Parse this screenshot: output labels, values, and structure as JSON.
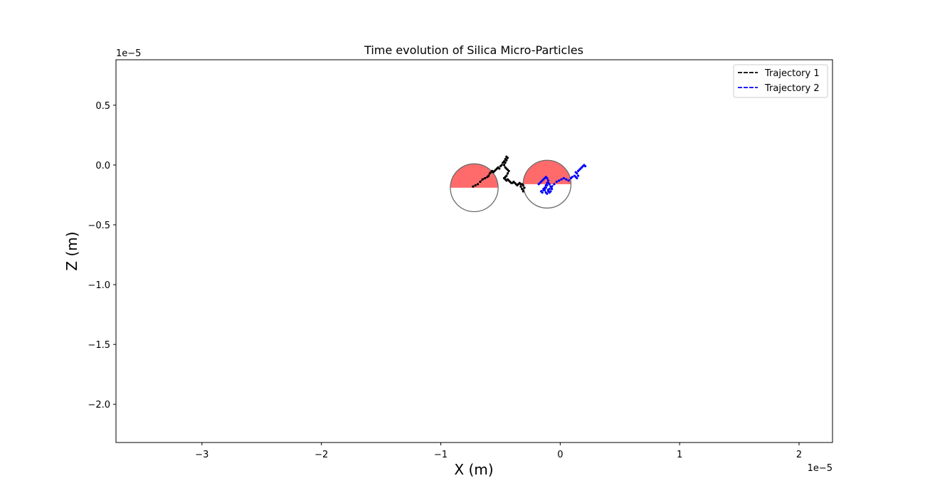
{
  "chart_data": {
    "type": "scatter",
    "title": "Time evolution of Silica Micro-Particles",
    "xlabel": "X (m)",
    "ylabel": "Z (m)",
    "x_offset_text": "1e−5",
    "y_offset_text": "1e−5",
    "xlim": [
      -3.72,
      2.28
    ],
    "ylim": [
      -2.32,
      0.88
    ],
    "x_ticks": [
      -3,
      -2,
      -1,
      0,
      1,
      2
    ],
    "x_tick_labels": [
      "−3",
      "−2",
      "−1",
      "0",
      "1",
      "2"
    ],
    "y_ticks": [
      0.5,
      0.0,
      -0.5,
      -1.0,
      -1.5,
      -2.0
    ],
    "y_tick_labels": [
      "0.5",
      "0.0",
      "−0.5",
      "−1.0",
      "−1.5",
      "−2.0"
    ],
    "grid": false,
    "legend_position": "top-right",
    "circles": [
      {
        "cx": -0.72,
        "cz": -0.19,
        "r": 0.2,
        "top_half_color": "#ff6b6b"
      },
      {
        "cx": -0.11,
        "cz": -0.16,
        "r": 0.2,
        "top_half_color": "#ff6b6b"
      }
    ],
    "series": [
      {
        "name": "Trajectory 1",
        "color": "#000000",
        "x": [
          -0.73,
          -0.71,
          -0.69,
          -0.67,
          -0.65,
          -0.63,
          -0.61,
          -0.6,
          -0.59,
          -0.58,
          -0.57,
          -0.56,
          -0.55,
          -0.54,
          -0.53,
          -0.52,
          -0.51,
          -0.5,
          -0.49,
          -0.48,
          -0.47,
          -0.46,
          -0.45,
          -0.44,
          -0.45,
          -0.46,
          -0.47,
          -0.46,
          -0.45,
          -0.44,
          -0.43,
          -0.44,
          -0.45,
          -0.46,
          -0.47,
          -0.46,
          -0.45,
          -0.44,
          -0.43,
          -0.42,
          -0.41,
          -0.4,
          -0.39,
          -0.38,
          -0.37,
          -0.36,
          -0.35,
          -0.34,
          -0.33,
          -0.33,
          -0.32,
          -0.31,
          -0.3,
          -0.31,
          -0.32
        ],
        "y": [
          -0.18,
          -0.17,
          -0.16,
          -0.14,
          -0.12,
          -0.11,
          -0.1,
          -0.09,
          -0.07,
          -0.06,
          -0.05,
          -0.06,
          -0.05,
          -0.04,
          -0.03,
          -0.02,
          -0.03,
          -0.01,
          0.0,
          0.02,
          0.03,
          0.05,
          0.07,
          0.06,
          0.04,
          0.02,
          0.0,
          -0.02,
          -0.03,
          -0.04,
          -0.05,
          -0.07,
          -0.09,
          -0.1,
          -0.11,
          -0.12,
          -0.13,
          -0.12,
          -0.13,
          -0.14,
          -0.15,
          -0.15,
          -0.14,
          -0.15,
          -0.16,
          -0.17,
          -0.16,
          -0.15,
          -0.16,
          -0.18,
          -0.2,
          -0.22,
          -0.19,
          -0.17,
          -0.16
        ]
      },
      {
        "name": "Trajectory 2",
        "color": "#0000ff",
        "x": [
          -0.18,
          -0.17,
          -0.16,
          -0.15,
          -0.14,
          -0.13,
          -0.12,
          -0.11,
          -0.1,
          -0.11,
          -0.12,
          -0.13,
          -0.14,
          -0.15,
          -0.16,
          -0.14,
          -0.12,
          -0.1,
          -0.09,
          -0.08,
          -0.07,
          -0.08,
          -0.09,
          -0.1,
          -0.11,
          -0.12,
          -0.13,
          -0.12,
          -0.11,
          -0.1,
          -0.09,
          -0.07,
          -0.05,
          -0.03,
          -0.01,
          0.01,
          0.03,
          0.05,
          0.07,
          0.09,
          0.1,
          0.12,
          0.13,
          0.14,
          0.15,
          0.14,
          0.13,
          0.15,
          0.16,
          0.17,
          0.18,
          0.19,
          0.2,
          0.21
        ],
        "y": [
          -0.16,
          -0.15,
          -0.14,
          -0.13,
          -0.12,
          -0.11,
          -0.1,
          -0.11,
          -0.13,
          -0.15,
          -0.17,
          -0.19,
          -0.21,
          -0.23,
          -0.22,
          -0.2,
          -0.19,
          -0.21,
          -0.23,
          -0.22,
          -0.2,
          -0.18,
          -0.16,
          -0.15,
          -0.17,
          -0.19,
          -0.21,
          -0.23,
          -0.24,
          -0.22,
          -0.2,
          -0.18,
          -0.16,
          -0.14,
          -0.13,
          -0.12,
          -0.11,
          -0.12,
          -0.13,
          -0.11,
          -0.1,
          -0.09,
          -0.1,
          -0.11,
          -0.09,
          -0.07,
          -0.06,
          -0.05,
          -0.04,
          -0.03,
          -0.02,
          -0.01,
          0.0,
          -0.01
        ]
      }
    ]
  }
}
